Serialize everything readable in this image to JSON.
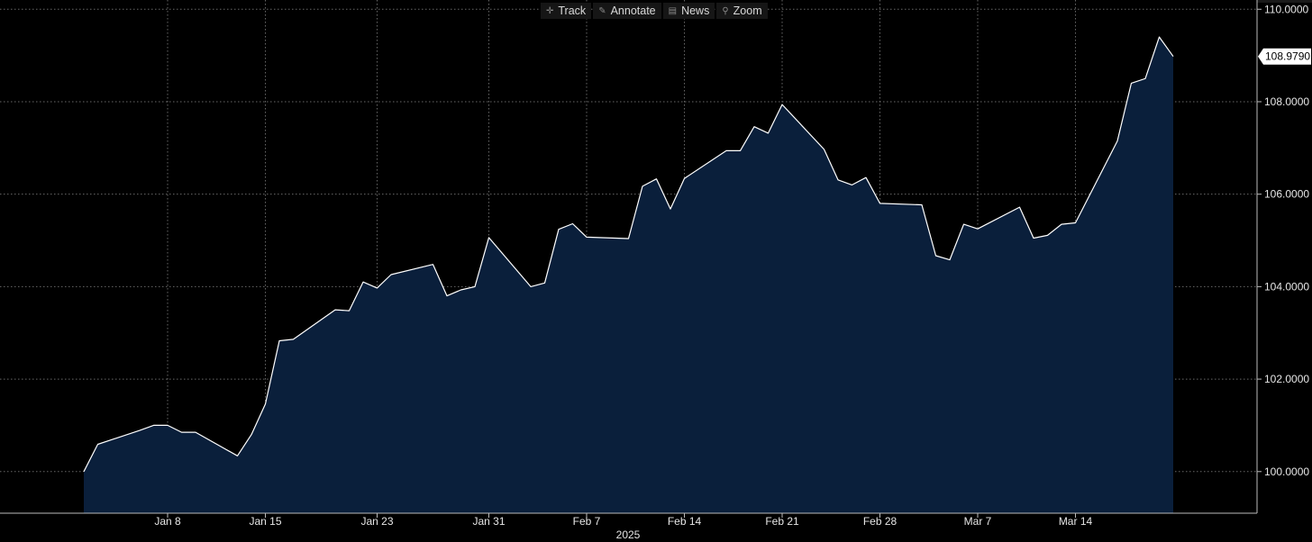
{
  "toolbar": {
    "track": {
      "label": "Track",
      "icon": "crosshair-icon"
    },
    "annotate": {
      "label": "Annotate",
      "icon": "pencil-icon"
    },
    "news": {
      "label": "News",
      "icon": "news-icon"
    },
    "zoom": {
      "label": "Zoom",
      "icon": "magnifier-icon"
    }
  },
  "colors": {
    "background": "#000000",
    "area_fill": "#0a1f3b",
    "line": "#ffffff",
    "grid": "#8a8a8a",
    "tab_accent": "#1f5fbf",
    "orange_accent": "#f0a020"
  },
  "chart_data": {
    "type": "area",
    "x": [
      "2025-01-02",
      "2025-01-03",
      "2025-01-06",
      "2025-01-07",
      "2025-01-08",
      "2025-01-09",
      "2025-01-10",
      "2025-01-13",
      "2025-01-14",
      "2025-01-15",
      "2025-01-16",
      "2025-01-17",
      "2025-01-20",
      "2025-01-21",
      "2025-01-22",
      "2025-01-23",
      "2025-01-24",
      "2025-01-27",
      "2025-01-28",
      "2025-01-29",
      "2025-01-30",
      "2025-01-31",
      "2025-02-03",
      "2025-02-04",
      "2025-02-05",
      "2025-02-06",
      "2025-02-07",
      "2025-02-10",
      "2025-02-11",
      "2025-02-12",
      "2025-02-13",
      "2025-02-14",
      "2025-02-17",
      "2025-02-18",
      "2025-02-19",
      "2025-02-20",
      "2025-02-21",
      "2025-02-24",
      "2025-02-25",
      "2025-02-26",
      "2025-02-27",
      "2025-02-28",
      "2025-03-03",
      "2025-03-04",
      "2025-03-05",
      "2025-03-06",
      "2025-03-07",
      "2025-03-10",
      "2025-03-11",
      "2025-03-12",
      "2025-03-13",
      "2025-03-14",
      "2025-03-17",
      "2025-03-18",
      "2025-03-19",
      "2025-03-20",
      "2025-03-21"
    ],
    "values": [
      100.0,
      100.59,
      100.89,
      101.0,
      101.0,
      100.85,
      100.85,
      100.34,
      100.8,
      101.46,
      102.83,
      102.86,
      103.5,
      103.48,
      104.1,
      103.97,
      104.26,
      104.48,
      103.8,
      103.93,
      104.0,
      105.06,
      104.0,
      104.08,
      105.24,
      105.36,
      105.07,
      105.04,
      106.17,
      106.33,
      105.68,
      106.34,
      106.94,
      106.94,
      107.46,
      107.32,
      107.94,
      106.97,
      106.31,
      106.2,
      106.36,
      105.8,
      105.77,
      104.67,
      104.58,
      105.35,
      105.25,
      105.72,
      105.05,
      105.11,
      105.35,
      105.38,
      107.15,
      108.4,
      108.5,
      109.4,
      108.979
    ],
    "last_value_label": "108.9790",
    "ylim": [
      99.1,
      110.2
    ],
    "y_ticks": [
      100,
      102,
      104,
      106,
      108,
      110
    ],
    "y_tick_labels": [
      "100.0000",
      "102.0000",
      "104.0000",
      "106.0000",
      "108.0000",
      "110.0000"
    ],
    "x_ticks": [
      {
        "date": "2025-01-08",
        "label": "Jan 8"
      },
      {
        "date": "2025-01-15",
        "label": "Jan 15"
      },
      {
        "date": "2025-01-23",
        "label": "Jan 23"
      },
      {
        "date": "2025-01-31",
        "label": "Jan 31"
      },
      {
        "date": "2025-02-07",
        "label": "Feb 7"
      },
      {
        "date": "2025-02-14",
        "label": "Feb 14"
      },
      {
        "date": "2025-02-21",
        "label": "Feb 21"
      },
      {
        "date": "2025-02-28",
        "label": "Feb 28"
      },
      {
        "date": "2025-03-07",
        "label": "Mar 7"
      },
      {
        "date": "2025-03-14",
        "label": "Mar 14"
      }
    ],
    "xlabel": "2025",
    "ylabel": "",
    "grid": true,
    "y_axis_side": "right"
  }
}
